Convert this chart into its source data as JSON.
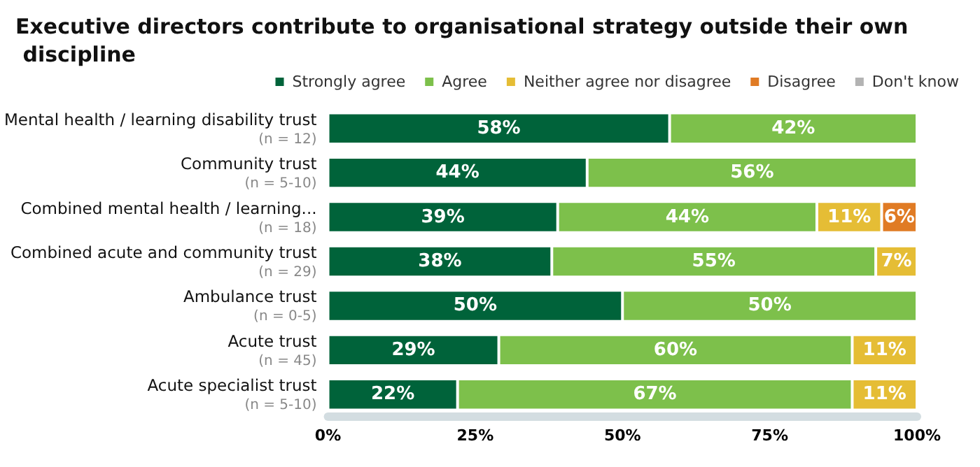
{
  "chart_data": {
    "type": "bar",
    "orientation": "horizontal",
    "stacked": true,
    "title": "Executive directors contribute to organisational strategy outside their own discipline",
    "categories": [
      "Mental health / learning disability trust\n(n = 12)",
      "Community trust\n(n = 5-10)",
      "Combined mental health / learning...\n(n = 18)",
      "Combined acute and community trust\n(n = 29)",
      "Ambulance trust\n(n = 0-5)",
      "Acute trust\n(n = 45)",
      "Acute specialist trust\n(n = 5-10)"
    ],
    "series": [
      {
        "name": "Strongly agree",
        "color": "#00633a",
        "values": [
          58,
          44,
          39,
          38,
          50,
          29,
          22
        ],
        "value_labels": [
          "58%",
          "44%",
          "39%",
          "38%",
          "50%",
          "29%",
          "22%"
        ]
      },
      {
        "name": "Agree",
        "color": "#7dc04b",
        "values": [
          42,
          56,
          44,
          55,
          50,
          60,
          67
        ],
        "value_labels": [
          "42%",
          "56%",
          "44%",
          "55%",
          "50%",
          "60%",
          "67%"
        ]
      },
      {
        "name": "Neither agree nor disagree",
        "color": "#e5bd35",
        "values": [
          null,
          null,
          11,
          7,
          null,
          11,
          11
        ],
        "value_labels": [
          null,
          null,
          "11%",
          "7%",
          null,
          "11%",
          "11%"
        ]
      },
      {
        "name": "Disagree",
        "color": "#e07b24",
        "values": [
          null,
          null,
          6,
          null,
          null,
          null,
          null
        ],
        "value_labels": [
          null,
          null,
          "6%",
          null,
          null,
          null,
          null
        ]
      },
      {
        "name": "Don't know",
        "color": "#b3b3b3",
        "values": [
          null,
          null,
          null,
          null,
          null,
          null,
          null
        ]
      }
    ],
    "xlim": [
      0,
      100
    ],
    "xticks": [
      {
        "value": 0,
        "label": "0%"
      },
      {
        "value": 25,
        "label": "25%"
      },
      {
        "value": 50,
        "label": "50%"
      },
      {
        "value": 75,
        "label": "75%"
      },
      {
        "value": 100,
        "label": "100%"
      }
    ],
    "grid": false,
    "legend": "top right"
  }
}
